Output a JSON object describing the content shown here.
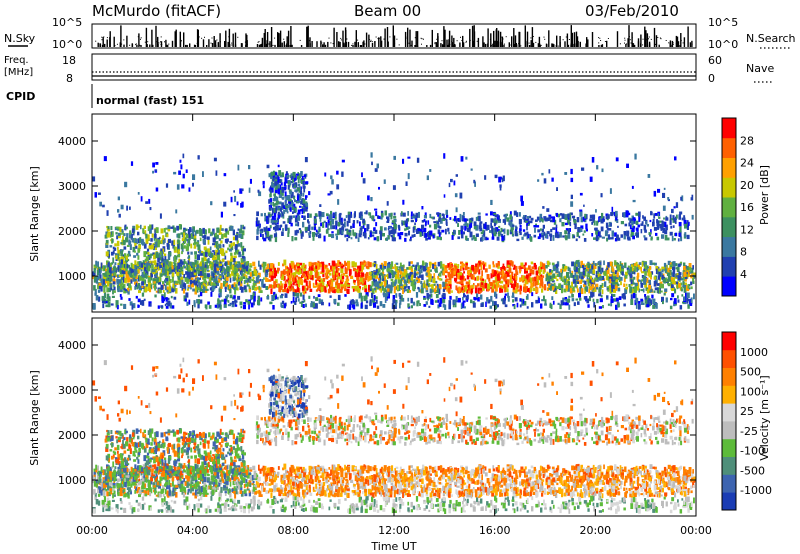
{
  "header": {
    "station": "McMurdo (fitACF)",
    "beam": "Beam 00",
    "date": "03/Feb/2010"
  },
  "strip_labels": {
    "nsky": "N.Sky",
    "nsearch": "N.Search",
    "freq_line1": "Freq.",
    "freq_line2": "[MHz]",
    "nave": "Nave",
    "cpid": "CPID",
    "cpid_value": "normal (fast) 151",
    "nsky_ticks": [
      "10^5",
      "10^0"
    ],
    "nsearch_ticks": [
      "10^5",
      "10^0"
    ],
    "freq_ticks": [
      "18",
      "8"
    ],
    "nave_ticks": [
      "60",
      "0"
    ]
  },
  "chart_data": [
    {
      "type": "heatmap",
      "panel": "power",
      "ylabel": "Slant Range [km]",
      "xlabel": "",
      "ylim": [
        200,
        4600
      ],
      "yticks": [
        "4000",
        "3000",
        "2000",
        "1000"
      ],
      "colorbar": {
        "label": "Power [dB]",
        "ticks": [
          "28",
          "24",
          "20",
          "16",
          "12",
          "8",
          "4"
        ],
        "colors": [
          "#0000ff",
          "#2040b0",
          "#3a78a0",
          "#3c9060",
          "#60b040",
          "#c8c800",
          "#ffa000",
          "#ff6000",
          "#ff0000"
        ]
      },
      "echo_bands": [
        {
          "t": [
            0.0,
            24.0
          ],
          "range": [
            600,
            1300
          ],
          "level": "high"
        },
        {
          "t": [
            6.5,
            24.0
          ],
          "range": [
            1800,
            2400
          ],
          "level": "low"
        },
        {
          "t": [
            7.0,
            8.5
          ],
          "range": [
            2400,
            3300
          ],
          "level": "low"
        }
      ]
    },
    {
      "type": "heatmap",
      "panel": "velocity",
      "ylabel": "Slant Range [km]",
      "xlabel": "Time UT",
      "ylim": [
        200,
        4600
      ],
      "yticks": [
        "4000",
        "3000",
        "2000",
        "1000"
      ],
      "xticks": [
        "00:00",
        "04:00",
        "08:00",
        "12:00",
        "16:00",
        "20:00",
        "00:00"
      ],
      "colorbar": {
        "label": "Velocity [m s⁻¹]",
        "ticks": [
          "1000",
          "500",
          "100",
          "25",
          "-25",
          "-100",
          "-500",
          "-1000"
        ],
        "colors": [
          "#1a3cb4",
          "#3d64b0",
          "#4f8f7a",
          "#5dbb3a",
          "#bdbdbd",
          "#d8d8d8",
          "#ffb000",
          "#ff8000",
          "#ff5000",
          "#ff0000"
        ]
      }
    }
  ]
}
